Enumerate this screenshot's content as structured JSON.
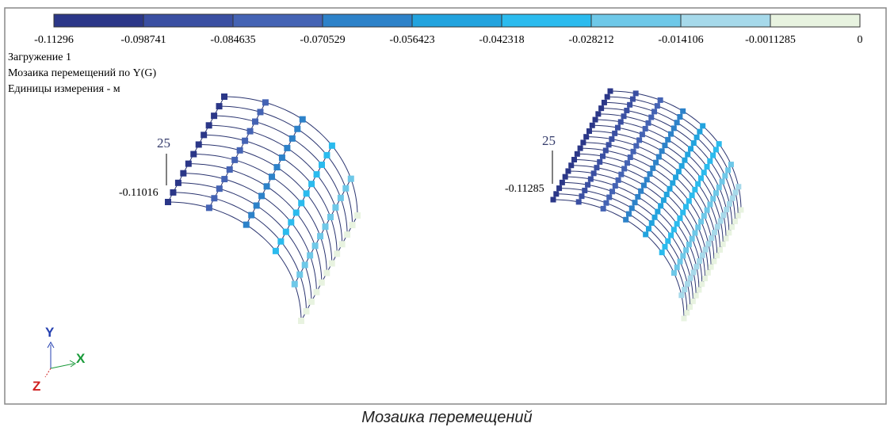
{
  "legend": {
    "colors": [
      "#2b3788",
      "#3a4fa2",
      "#4463b4",
      "#2d82c9",
      "#22a3de",
      "#2bbbee",
      "#6ec8e8",
      "#a6d9ea",
      "#e8f3e0"
    ],
    "labels": [
      "-0.11296",
      "-0.098741",
      "-0.084635",
      "-0.070529",
      "-0.056423",
      "-0.042318",
      "-0.028212",
      "-0.014106",
      "-0.0011285",
      "0"
    ]
  },
  "info": [
    "Загружение 1",
    "Мозаика перемещений по Y(G)",
    "Единицы измерения - м"
  ],
  "left_view": {
    "node": "25",
    "value": "-0.11016"
  },
  "right_view": {
    "node": "25",
    "value": "-0.11285"
  },
  "axes": {
    "y": "Y",
    "x": "X",
    "z": "Z"
  },
  "caption": "Мозаика перемещений"
}
